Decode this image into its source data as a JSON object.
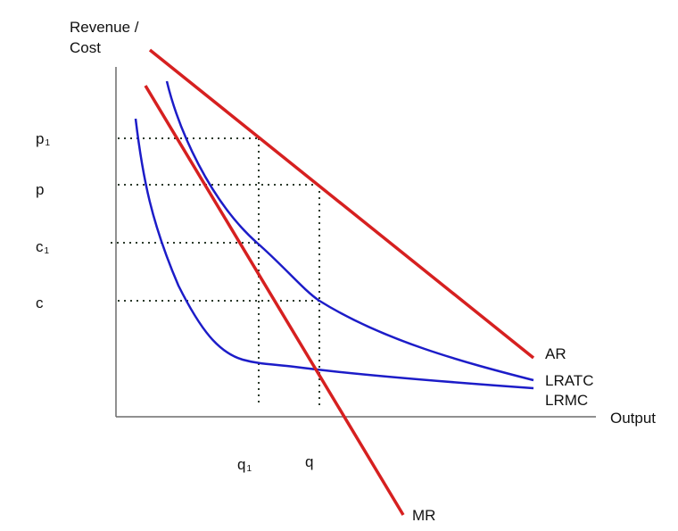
{
  "labels": {
    "y_axis_line1": "Revenue /",
    "y_axis_line2": "Cost",
    "x_axis": "Output",
    "p": "p",
    "c": "c",
    "q": "q",
    "subscript": "1"
  },
  "curves": {
    "ar": {
      "label": "AR",
      "color": "#d62020"
    },
    "mr": {
      "label": "MR",
      "color": "#d62020"
    },
    "lratc": {
      "label": "LRATC",
      "color": "#1c1cc8"
    },
    "lrmc": {
      "label": "LRMC",
      "color": "#1c1cc8"
    }
  },
  "guides": {
    "style": "dotted",
    "color": "#2b3a2b"
  }
}
